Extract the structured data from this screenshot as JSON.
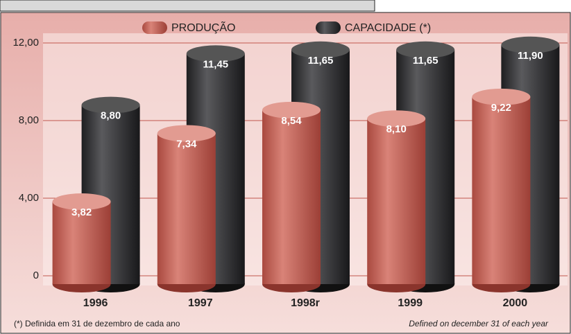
{
  "chart_data": {
    "type": "bar",
    "categories": [
      "1996",
      "1997",
      "1998r",
      "1999",
      "2000"
    ],
    "series": [
      {
        "name": "PRODUÇÃO",
        "color": "#c4665b",
        "values": [
          3.82,
          7.34,
          8.54,
          8.1,
          9.22
        ],
        "value_labels": [
          "3,82",
          "7,34",
          "8,54",
          "8,10",
          "9,22"
        ]
      },
      {
        "name": "CAPACIDADE (*)",
        "color": "#3a3a3c",
        "values": [
          8.8,
          11.45,
          11.65,
          11.65,
          11.9
        ],
        "value_labels": [
          "8,80",
          "11,45",
          "11,65",
          "11,65",
          "11,90"
        ]
      }
    ],
    "ylim": [
      0,
      12.5
    ],
    "yticks": [
      0,
      {
        "value": 4,
        "label": "4,00"
      },
      {
        "value": 8,
        "label": "8,00"
      },
      {
        "value": 12,
        "label": "12,00"
      }
    ],
    "grid": true,
    "legend": "top",
    "annotations": [
      "(*) Definida em 31 de dezembro de cada ano",
      "Defined on december 31 of each year"
    ]
  }
}
